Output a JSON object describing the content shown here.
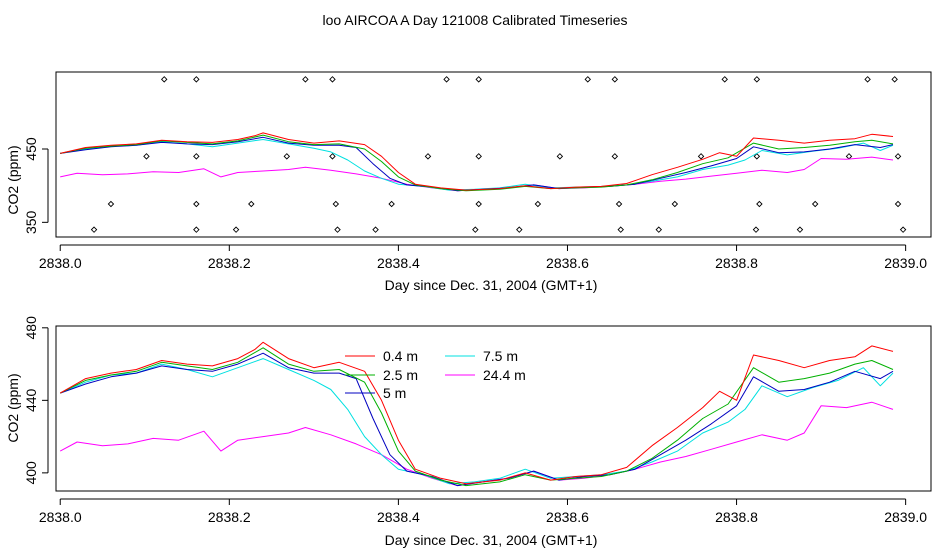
{
  "title": "loo AIRCOA A  Day 121008  Calibrated Timeseries",
  "chart_data": [
    {
      "type": "line",
      "panel": "top",
      "xlabel": "Day since Dec. 31, 2004 (GMT+1)",
      "ylabel": "CO2 (ppm)",
      "xlim": [
        2837.995,
        2839.03
      ],
      "ylim": [
        330,
        555
      ],
      "x_ticks": [
        2838.0,
        2838.2,
        2838.4,
        2838.6,
        2838.8,
        2839.0
      ],
      "x_tick_labels": [
        "2838.0",
        "2838.2",
        "2838.4",
        "2838.6",
        "2838.8",
        "2839.0"
      ],
      "y_ticks": [
        350,
        450
      ],
      "y_tick_labels": [
        "350",
        "450"
      ],
      "flag_markers": {
        "rows": [
          {
            "y": 545,
            "x": [
              2838.123,
              2838.161,
              2838.29,
              2838.322,
              2838.457,
              2838.495,
              2838.624,
              2838.656,
              2838.786,
              2838.824,
              2838.955,
              2838.987
            ]
          },
          {
            "y": 440,
            "x": [
              2838.102,
              2838.161,
              2838.268,
              2838.322,
              2838.435,
              2838.495,
              2838.591,
              2838.656,
              2838.758,
              2838.824,
              2838.933,
              2838.991
            ]
          },
          {
            "y": 375,
            "x": [
              2838.06,
              2838.161,
              2838.226,
              2838.326,
              2838.392,
              2838.495,
              2838.565,
              2838.661,
              2838.727,
              2838.827,
              2838.893,
              2838.991
            ]
          },
          {
            "y": 340,
            "x": [
              2838.04,
              2838.161,
              2838.208,
              2838.328,
              2838.373,
              2838.491,
              2838.543,
              2838.663,
              2838.708,
              2838.823,
              2838.875,
              2838.997
            ]
          }
        ]
      },
      "series": [
        {
          "name": "0.4 m",
          "color": "#ff0000",
          "x": [
            2838.0,
            2838.03,
            2838.06,
            2838.09,
            2838.12,
            2838.15,
            2838.18,
            2838.21,
            2838.23,
            2838.24,
            2838.27,
            2838.3,
            2838.33,
            2838.36,
            2838.38,
            2838.4,
            2838.42,
            2838.45,
            2838.48,
            2838.52,
            2838.55,
            2838.58,
            2838.61,
            2838.64,
            2838.67,
            2838.7,
            2838.73,
            2838.76,
            2838.78,
            2838.8,
            2838.82,
            2838.85,
            2838.88,
            2838.91,
            2838.94,
            2838.96,
            2838.985
          ],
          "y": [
            444,
            452,
            455,
            457,
            462,
            460,
            459,
            463,
            468,
            472,
            463,
            458,
            461,
            456,
            440,
            418,
            402,
            397,
            394,
            396,
            400,
            396,
            398,
            399,
            403,
            415,
            425,
            436,
            445,
            440,
            465,
            462,
            458,
            462,
            464,
            470,
            467
          ]
        },
        {
          "name": "2.5 m",
          "color": "#00b000",
          "x": [
            2838.0,
            2838.03,
            2838.06,
            2838.09,
            2838.12,
            2838.15,
            2838.18,
            2838.21,
            2838.24,
            2838.27,
            2838.3,
            2838.33,
            2838.36,
            2838.38,
            2838.4,
            2838.42,
            2838.45,
            2838.48,
            2838.52,
            2838.55,
            2838.58,
            2838.61,
            2838.64,
            2838.67,
            2838.7,
            2838.73,
            2838.76,
            2838.79,
            2838.82,
            2838.85,
            2838.88,
            2838.91,
            2838.94,
            2838.96,
            2838.985
          ],
          "y": [
            444,
            451,
            454,
            456,
            461,
            459,
            457,
            461,
            469,
            460,
            456,
            457,
            450,
            433,
            412,
            401,
            396,
            393,
            395,
            399,
            396,
            397,
            398,
            401,
            408,
            418,
            430,
            438,
            458,
            450,
            452,
            455,
            460,
            462,
            457
          ]
        },
        {
          "name": "5 m",
          "color": "#0000c0",
          "x": [
            2838.0,
            2838.03,
            2838.06,
            2838.09,
            2838.12,
            2838.15,
            2838.18,
            2838.21,
            2838.24,
            2838.27,
            2838.3,
            2838.33,
            2838.35,
            2838.37,
            2838.39,
            2838.41,
            2838.44,
            2838.47,
            2838.5,
            2838.53,
            2838.56,
            2838.59,
            2838.62,
            2838.65,
            2838.68,
            2838.71,
            2838.74,
            2838.77,
            2838.8,
            2838.82,
            2838.85,
            2838.88,
            2838.91,
            2838.94,
            2838.97,
            2838.985
          ],
          "y": [
            444,
            449,
            453,
            455,
            459,
            457,
            456,
            460,
            466,
            458,
            455,
            455,
            452,
            430,
            410,
            401,
            398,
            393,
            395,
            397,
            401,
            396,
            398,
            399,
            402,
            410,
            418,
            427,
            437,
            453,
            445,
            446,
            450,
            456,
            452,
            456
          ]
        },
        {
          "name": "7.5 m",
          "color": "#00e0e0",
          "x": [
            2838.0,
            2838.03,
            2838.06,
            2838.09,
            2838.12,
            2838.15,
            2838.18,
            2838.21,
            2838.24,
            2838.27,
            2838.3,
            2838.32,
            2838.34,
            2838.36,
            2838.38,
            2838.4,
            2838.43,
            2838.46,
            2838.49,
            2838.52,
            2838.55,
            2838.58,
            2838.61,
            2838.64,
            2838.67,
            2838.7,
            2838.73,
            2838.76,
            2838.79,
            2838.81,
            2838.83,
            2838.86,
            2838.89,
            2838.92,
            2838.95,
            2838.97,
            2838.985
          ],
          "y": [
            444,
            450,
            454,
            455,
            460,
            457,
            453,
            458,
            463,
            457,
            451,
            446,
            435,
            420,
            410,
            402,
            399,
            394,
            395,
            397,
            402,
            397,
            398,
            399,
            401,
            406,
            412,
            422,
            428,
            435,
            448,
            442,
            447,
            451,
            458,
            448,
            455
          ]
        },
        {
          "name": "24.4 m",
          "color": "#ff00ff",
          "x": [
            2838.0,
            2838.02,
            2838.05,
            2838.08,
            2838.11,
            2838.14,
            2838.17,
            2838.19,
            2838.21,
            2838.24,
            2838.27,
            2838.29,
            2838.32,
            2838.35,
            2838.38,
            2838.41,
            2838.44,
            2838.47,
            2838.5,
            2838.53,
            2838.56,
            2838.59,
            2838.62,
            2838.65,
            2838.68,
            2838.71,
            2838.74,
            2838.77,
            2838.8,
            2838.83,
            2838.86,
            2838.88,
            2838.9,
            2838.93,
            2838.96,
            2838.985
          ],
          "y": [
            412,
            417,
            415,
            416,
            419,
            418,
            423,
            412,
            418,
            420,
            422,
            425,
            421,
            416,
            410,
            402,
            397,
            393,
            395,
            397,
            401,
            396,
            397,
            399,
            402,
            406,
            409,
            413,
            417,
            421,
            418,
            422,
            437,
            436,
            439,
            435
          ]
        }
      ]
    },
    {
      "type": "line",
      "panel": "bottom",
      "xlabel": "Day since Dec. 31, 2004 (GMT+1)",
      "ylabel": "CO2 (ppm)",
      "xlim": [
        2837.995,
        2839.03
      ],
      "ylim": [
        390,
        481
      ],
      "x_ticks": [
        2838.0,
        2838.2,
        2838.4,
        2838.6,
        2838.8,
        2839.0
      ],
      "x_tick_labels": [
        "2838.0",
        "2838.2",
        "2838.4",
        "2838.6",
        "2838.8",
        "2839.0"
      ],
      "y_ticks": [
        400,
        440,
        480
      ],
      "y_tick_labels": [
        "400",
        "440",
        "480"
      ],
      "legend": {
        "placement": "top-center",
        "items": [
          "0.4 m",
          "2.5 m",
          "5 m",
          "7.5 m",
          "24.4 m"
        ]
      },
      "series_ref": "same as top panel"
    }
  ]
}
